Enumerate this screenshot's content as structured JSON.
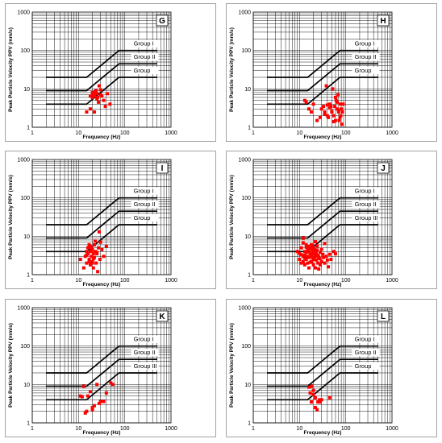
{
  "chart_data": [
    {
      "panel_id": "G",
      "type": "scatter",
      "xlabel": "Frequency (Hz)",
      "ylabel": "Peak Particle Velocity PPV (mm/s)",
      "xscale": "log",
      "yscale": "log",
      "xlim": [
        1,
        1000
      ],
      "ylim": [
        1,
        1000
      ],
      "x_ticks": [
        "1",
        "10",
        "100",
        "1000"
      ],
      "y_ticks": [
        "1",
        "10",
        "100",
        "1000"
      ],
      "groups": [
        "Group I",
        "Group II",
        "Group"
      ],
      "x": [
        15,
        18,
        20,
        20,
        21,
        22,
        22,
        23,
        24,
        25,
        26,
        27,
        28,
        30,
        32,
        35,
        38,
        42,
        48,
        22,
        25,
        18,
        20,
        30
      ],
      "y": [
        2.5,
        3,
        6,
        7,
        8,
        6.5,
        7,
        8.5,
        9,
        7.5,
        6,
        4.5,
        12,
        7,
        6.5,
        5,
        3.5,
        7.5,
        4,
        2.5,
        5.5,
        6.5,
        8,
        9.5
      ]
    },
    {
      "panel_id": "H",
      "type": "scatter",
      "xlabel": "Frequency (Hz)",
      "ylabel": "Peak Particle Velocity PPV (mm/s)",
      "xscale": "log",
      "yscale": "log",
      "xlim": [
        1,
        1000
      ],
      "ylim": [
        1,
        1000
      ],
      "x_ticks": [
        "1",
        "10",
        "100",
        "1000"
      ],
      "y_ticks": [
        "1",
        "10",
        "100",
        "1000"
      ],
      "groups": [
        "Group I",
        "Group II",
        "Group"
      ],
      "x": [
        13,
        14,
        16,
        18,
        20,
        24,
        28,
        30,
        33,
        35,
        38,
        40,
        42,
        45,
        48,
        50,
        52,
        55,
        58,
        60,
        62,
        65,
        68,
        70,
        72,
        75,
        78,
        80,
        82,
        85,
        88,
        60,
        55,
        45,
        70,
        35,
        65,
        75,
        50,
        40
      ],
      "y": [
        5,
        4.5,
        3,
        2.5,
        4,
        1.5,
        1.8,
        3,
        3.5,
        2.5,
        12,
        2,
        1.8,
        4,
        3.5,
        2.5,
        10,
        2,
        3.5,
        1.5,
        5,
        3,
        7,
        2.5,
        1.5,
        4,
        2,
        3,
        1.2,
        2.5,
        4,
        6,
        1.4,
        3.2,
        2.8,
        2.2,
        4.5,
        1.8,
        2.6,
        3.8
      ]
    },
    {
      "panel_id": "I",
      "type": "scatter",
      "xlabel": "Frequency (Hz)",
      "ylabel": "Peak Particle Velocity PPV (mm/s)",
      "xscale": "log",
      "yscale": "log",
      "xlim": [
        1,
        1000
      ],
      "ylim": [
        1,
        1000
      ],
      "x_ticks": [
        "1",
        "10",
        "100",
        "1000"
      ],
      "y_ticks": [
        "1",
        "10",
        "100",
        "1000"
      ],
      "groups": [
        "Group I",
        "Group II",
        "Group"
      ],
      "x": [
        11,
        13,
        14,
        15,
        15,
        16,
        16,
        17,
        17,
        18,
        18,
        19,
        19,
        20,
        20,
        21,
        21,
        22,
        22,
        23,
        24,
        25,
        26,
        27,
        28,
        29,
        30,
        32,
        35,
        40,
        15,
        17,
        19,
        21,
        23,
        25,
        18,
        20
      ],
      "y": [
        2.5,
        1.5,
        3,
        4,
        2,
        5,
        3.5,
        2.5,
        6,
        4,
        1.8,
        3,
        5,
        2.2,
        4.5,
        3.5,
        1.5,
        2.8,
        6,
        4,
        2,
        3.5,
        1.2,
        5,
        13,
        2.5,
        7,
        4.5,
        3,
        5.5,
        3.2,
        2.2,
        4.2,
        2.6,
        7.5,
        3.8,
        5.5,
        2
      ]
    },
    {
      "panel_id": "J",
      "type": "scatter",
      "xlabel": "Frequency (Hz)",
      "ylabel": "Peak Particle Velocity PPV (mm/s)",
      "xscale": "log",
      "yscale": "log",
      "xlim": [
        1,
        1000
      ],
      "ylim": [
        1,
        1000
      ],
      "x_ticks": [
        "1",
        "10",
        "100",
        "1000"
      ],
      "y_ticks": [
        "1",
        "10",
        "100",
        "1000"
      ],
      "groups": [
        "Group I",
        "Group II",
        "Group III"
      ],
      "x": [
        9,
        10,
        10,
        11,
        11,
        12,
        12,
        12,
        13,
        13,
        13,
        14,
        14,
        14,
        15,
        15,
        15,
        16,
        16,
        16,
        17,
        17,
        18,
        18,
        18,
        19,
        19,
        20,
        20,
        20,
        21,
        21,
        22,
        22,
        23,
        23,
        24,
        25,
        25,
        26,
        27,
        28,
        28,
        30,
        30,
        32,
        33,
        35,
        35,
        38,
        40,
        42,
        45,
        48,
        55,
        60,
        12,
        14,
        16,
        18,
        20,
        22,
        24,
        26,
        11,
        13,
        15,
        17,
        19,
        21
      ],
      "y": [
        4,
        2.5,
        3.5,
        2,
        5,
        3,
        9,
        2.2,
        4,
        3.2,
        1.8,
        6,
        2.5,
        3.8,
        4.5,
        2,
        3,
        5.5,
        2.8,
        1.5,
        3.5,
        4.8,
        2.2,
        6,
        3,
        2.8,
        4.2,
        1.8,
        3.5,
        5,
        2.5,
        4,
        3,
        1.5,
        3.6,
        2.4,
        4.4,
        2,
        3.2,
        1.4,
        2.6,
        3.8,
        1.8,
        2.2,
        4.6,
        3.4,
        2.8,
        2,
        6.5,
        3,
        2.4,
        1.6,
        3.4,
        2.5,
        4,
        3.5,
        6.8,
        5.2,
        4.2,
        3.4,
        2.6,
        7.2,
        5.6,
        2.9,
        3.3,
        2.7,
        3.9,
        2.1,
        5.8,
        4.6
      ]
    },
    {
      "panel_id": "K",
      "type": "scatter",
      "xlabel": "Frequency (Hz)",
      "ylabel": "Peak Particle Velocity PPV (mm/s)",
      "xscale": "log",
      "yscale": "log",
      "xlim": [
        1,
        1000
      ],
      "ylim": [
        1,
        1000
      ],
      "x_ticks": [
        "1",
        "10",
        "100",
        "1000"
      ],
      "y_ticks": [
        "1",
        "10",
        "100",
        "1000"
      ],
      "groups": [
        "Group I",
        "Group II",
        "Group III"
      ],
      "x": [
        11,
        12,
        13,
        14,
        15,
        16,
        18,
        20,
        22,
        25,
        28,
        30,
        35,
        40,
        50,
        55,
        20
      ],
      "y": [
        5,
        4.8,
        9,
        1.8,
        2,
        5,
        6.5,
        2.2,
        2.8,
        10,
        3.2,
        3.6,
        3.6,
        6,
        11,
        10,
        2.5
      ]
    },
    {
      "panel_id": "L",
      "type": "scatter",
      "xlabel": "Frequency (Hz)",
      "ylabel": "Peak Particle Velocity PPV (mm/s)",
      "xscale": "log",
      "yscale": "log",
      "xlim": [
        1,
        1000
      ],
      "ylim": [
        1,
        1000
      ],
      "x_ticks": [
        "1",
        "10",
        "100",
        "1000"
      ],
      "y_ticks": [
        "1",
        "10",
        "100",
        "1000"
      ],
      "groups": [
        "Group I",
        "Group II",
        "Group"
      ],
      "x": [
        16,
        17,
        18,
        18,
        20,
        22,
        22,
        24,
        25,
        27,
        28,
        30,
        45,
        20
      ],
      "y": [
        8.5,
        6,
        9,
        3.5,
        7,
        2.5,
        4.5,
        2.2,
        3.5,
        4,
        3.5,
        4,
        4.5,
        5.5
      ]
    }
  ]
}
